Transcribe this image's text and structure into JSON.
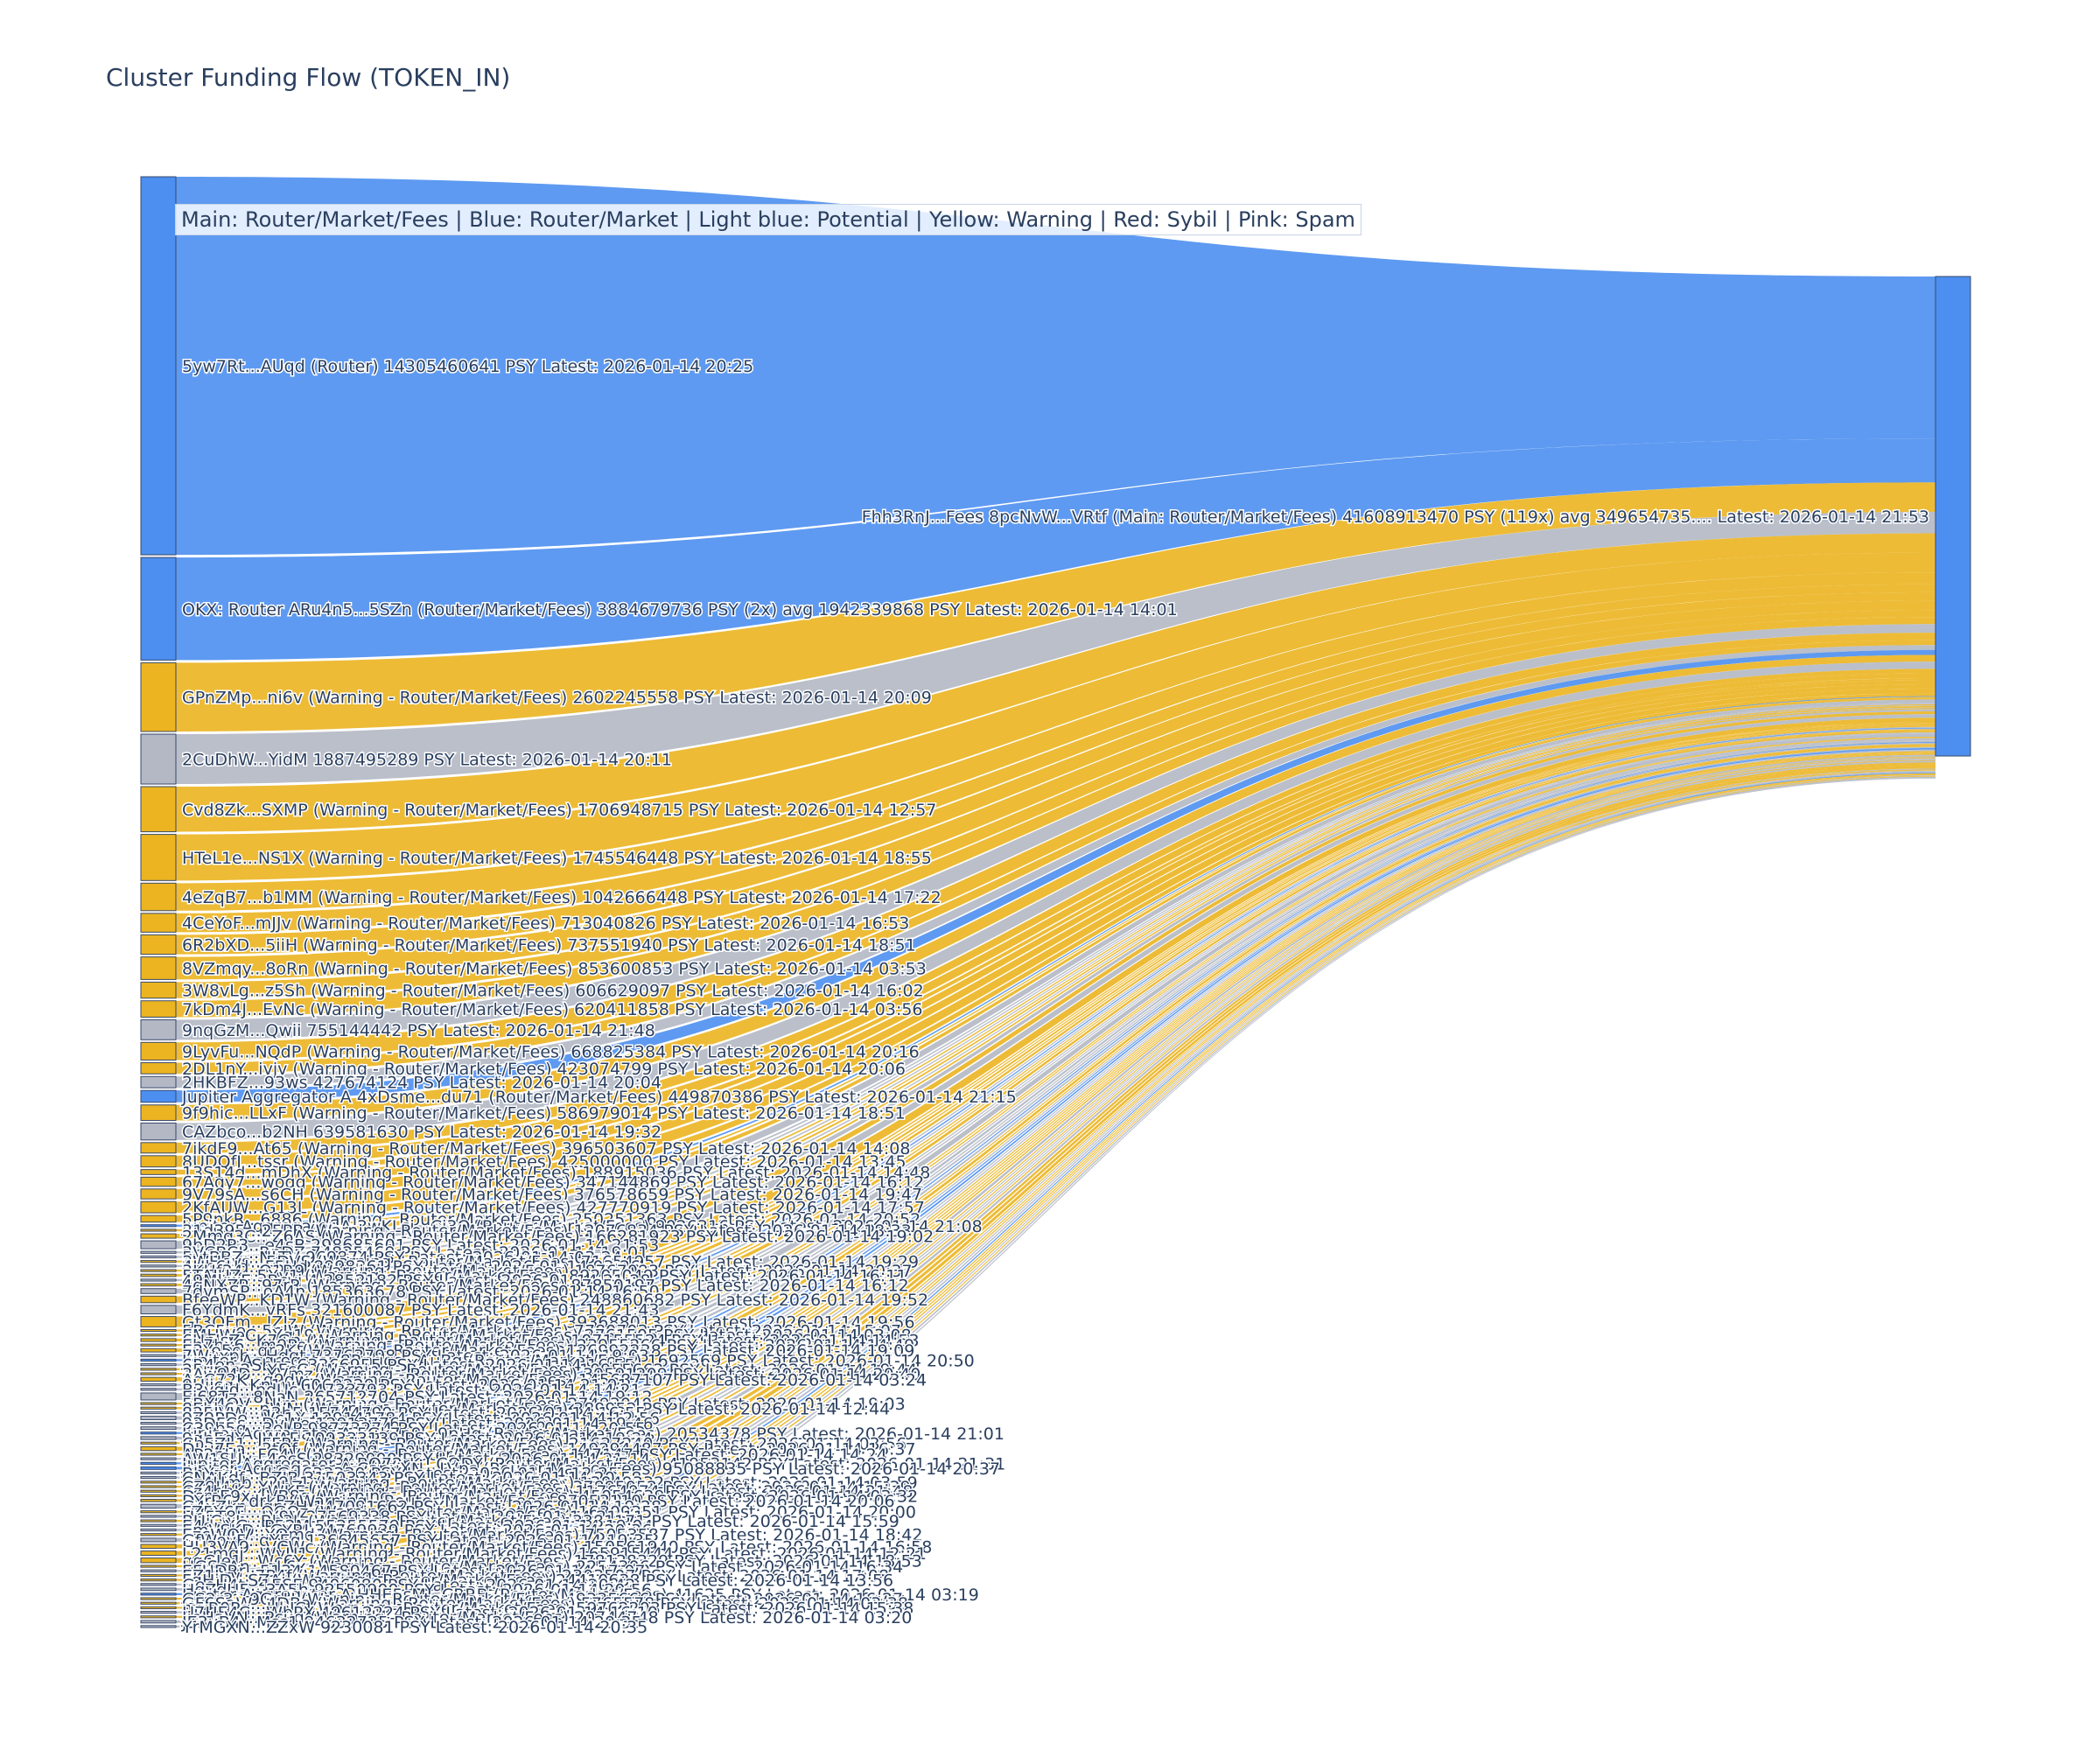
{
  "chart_data": {
    "type": "sankey",
    "title": "Cluster Funding Flow (TOKEN_IN)",
    "legend": "Main: Router/Market/Fees  |  Blue: Router/Market | Light blue: Potential | Yellow: Warning | Red: Sybil | Pink: Spam",
    "colors": {
      "router": "#4c8ff0",
      "warning": "#ebb420",
      "neutral": "#b3b8c4",
      "node_border": "#3a4a6a"
    },
    "target": {
      "label": "Fhh3RnJ...Fees 8pcNvW...VRtf (Main: Router/Market/Fees) 41608913470 PSY (119x) avg 349654735.... Latest: 2026-01-14 21:53",
      "value": 41608913470
    },
    "sources": [
      {
        "label": "5yw7Rt...AUqd (Router) 14305460641 PSY Latest: 2026-01-14 20:25",
        "value": 14305460641,
        "cat": "router"
      },
      {
        "label": "OKX: Router ARu4n5...5SZn (Router/Market/Fees) 3884679736 PSY (2x) avg 1942339868 PSY Latest: 2026-01-14 14:01",
        "value": 3884679736,
        "cat": "router"
      },
      {
        "label": "GPnZMp...ni6v (Warning - Router/Market/Fees) 2602245558 PSY Latest: 2026-01-14 20:09",
        "value": 2602245558,
        "cat": "warning"
      },
      {
        "label": "2CuDhW...YidM 1887495289 PSY Latest: 2026-01-14 20:11",
        "value": 1887495289,
        "cat": "neutral"
      },
      {
        "label": "Cvd8Zk...SXMP (Warning - Router/Market/Fees) 1706948715 PSY Latest: 2026-01-14 12:57",
        "value": 1706948715,
        "cat": "warning"
      },
      {
        "label": "HTeL1e...NS1X (Warning - Router/Market/Fees) 1745546448 PSY Latest: 2026-01-14 18:55",
        "value": 1745546448,
        "cat": "warning"
      },
      {
        "label": "4eZqB7...b1MM (Warning - Router/Market/Fees) 1042666448 PSY Latest: 2026-01-14 17:22",
        "value": 1042666448,
        "cat": "warning"
      },
      {
        "label": "4CeYoF...mJJv (Warning - Router/Market/Fees) 713040826 PSY Latest: 2026-01-14 16:53",
        "value": 713040826,
        "cat": "warning"
      },
      {
        "label": "6R2bXD...5iiH (Warning - Router/Market/Fees) 737551940 PSY Latest: 2026-01-14 18:51",
        "value": 737551940,
        "cat": "warning"
      },
      {
        "label": "8VZmqy...8oRn (Warning - Router/Market/Fees) 853600853 PSY Latest: 2026-01-14 03:53",
        "value": 853600853,
        "cat": "warning"
      },
      {
        "label": "3W8vLg...z5Sh (Warning - Router/Market/Fees) 606629097 PSY Latest: 2026-01-14 16:02",
        "value": 606629097,
        "cat": "warning"
      },
      {
        "label": "7kDm4J...EvNc (Warning - Router/Market/Fees) 620411858 PSY Latest: 2026-01-14 03:56",
        "value": 620411858,
        "cat": "warning"
      },
      {
        "label": "9nqGzM...Qwii 755144442 PSY Latest: 2026-01-14 21:48",
        "value": 755144442,
        "cat": "neutral"
      },
      {
        "label": "9LyvFu...NQdP (Warning - Router/Market/Fees) 668825384 PSY Latest: 2026-01-14 20:16",
        "value": 668825384,
        "cat": "warning"
      },
      {
        "label": "2DL1nY...ivjv (Warning - Router/Market/Fees) 423074799 PSY Latest: 2026-01-14 20:06",
        "value": 423074799,
        "cat": "warning"
      },
      {
        "label": "2HKBFZ...93ws 427674124 PSY Latest: 2026-01-14 20:04",
        "value": 427674124,
        "cat": "neutral"
      },
      {
        "label": "Jupiter Aggregator A 4xDsme...du71 (Router/Market/Fees) 449870386 PSY Latest: 2026-01-14 21:15",
        "value": 449870386,
        "cat": "router"
      },
      {
        "label": "9f9hic...LLxF (Warning - Router/Market/Fees) 586979014 PSY Latest: 2026-01-14 18:51",
        "value": 586979014,
        "cat": "warning"
      },
      {
        "label": "CAZbco...b2NH 639581630 PSY Latest: 2026-01-14 19:32",
        "value": 639581630,
        "cat": "neutral"
      },
      {
        "label": "7jkdF9...At65 (Warning - Router/Market/Fees) 396503607 PSY Latest: 2026-01-14 14:08",
        "value": 396503607,
        "cat": "warning"
      },
      {
        "label": "8UDQfJ...tssr (Warning - Router/Market/Fees) 425000000 PSY Latest: 2026-01-14 13:45",
        "value": 425000000,
        "cat": "warning"
      },
      {
        "label": "13S14d...mDhX (Warning - Router/Market/Fees) 188915036 PSY Latest: 2026-01-14 14:48",
        "value": 188915036,
        "cat": "warning"
      },
      {
        "label": "67Aqy7...woqg (Warning - Router/Market/Fees) 347144869 PSY Latest: 2026-01-14 16:12",
        "value": 347144869,
        "cat": "warning"
      },
      {
        "label": "9V79sA...s6CH (Warning - Router/Market/Fees) 376578659 PSY Latest: 2026-01-14 19:47",
        "value": 376578659,
        "cat": "warning"
      },
      {
        "label": "2KfAUW...G13L (Warning - Router/Market/Fees) 427770919 PSY Latest: 2026-01-14 17:57",
        "value": 427770919,
        "cat": "warning"
      },
      {
        "label": "5P9nkR...6886 (Warning - Router/Market/Fees) 250251363 PSY Latest: 2026-01-14 20:52",
        "value": 250251363,
        "cat": "warning"
      },
      {
        "label": "Jupiter Aggregator A 3wKLsi...Cj3Q (Router/Market/Fees) 9026316 PSY Latest: 2026-01-14 21:08",
        "value": 9026316,
        "cat": "router"
      },
      {
        "label": "31d395...25PB (Warning - Router/Market/Fees) 12076834 PSY Latest: 2026-01-14 18:33",
        "value": 12076834,
        "cat": "warning"
      },
      {
        "label": "2Mmg3C...Z6AS (Warning - Router/Market/Fees) 166281923 PSY Latest: 2026-01-14 19:02",
        "value": 166281923,
        "cat": "warning"
      },
      {
        "label": "9bD2R3...e4sB 298685601 PSY Latest: 2026-01-14 21:53",
        "value": 298685601,
        "cat": "neutral"
      },
      {
        "label": "3VCBCJ...RpDZ 74825469 PSY Latest: 2026-01-14 19:01",
        "value": 74825469,
        "cat": "neutral"
      },
      {
        "label": "5ytBBZ...NLTV 969874 PSY Latest: 2026-01-14 03:24",
        "value": 969874,
        "cat": "neutral"
      },
      {
        "label": "3WHeys...5DVS (Warning - Router/Market/Fees) 71654957 PSY Latest: 2026-01-14 19:29",
        "value": 71654957,
        "cat": "warning"
      },
      {
        "label": "4Hb6Ud...F5Hd 8998361 PSY Latest: 2026-01-14 03:26",
        "value": 8998361,
        "cat": "neutral"
      },
      {
        "label": "3KHf34...Q1R9 (Warning - Router/Market/Fees) 18767093 PSY Latest: 2026-01-14 20:37",
        "value": 18767093,
        "cat": "warning"
      },
      {
        "label": "5TAJUZ...5Xy1 (Warning - Router/Market/Fees) 89205049 PSY Latest: 2026-01-14 16:11",
        "value": 89205049,
        "cat": "warning"
      },
      {
        "label": "49MkwE...Bcvi 4 2852182 PSY Latest: 2026-01-14 21:28",
        "value": 2852182,
        "cat": "neutral"
      },
      {
        "label": "4qNXZP...97rR (Warning - Router/Market/Fees) 87850197 PSY Latest: 2026-01-14 16:12",
        "value": 87850197,
        "cat": "warning"
      },
      {
        "label": "7dvmSP...oA4n 185363678 PSY Latest: 2026-01-14 16:50",
        "value": 185363678,
        "cat": "neutral"
      },
      {
        "label": "BfeeWP...KD1W (Warning - Router/Market/Fees) 248860682 PSY Latest: 2026-01-14 19:52",
        "value": 248860682,
        "cat": "warning"
      },
      {
        "label": "F6YdmK...vRFs 321600087 PSY Latest: 2026-01-14 21:43",
        "value": 321600087,
        "cat": "neutral"
      },
      {
        "label": "Gt3QFm...JZJz (Warning - Router/Market/Fees) 393688013 PSY Latest: 2026-01-14 19:56",
        "value": 393688013,
        "cat": "warning"
      },
      {
        "label": "5BC5ye...5nJW (Warning - Router/Market/Fees) 7780703 PSY Latest: 2026-01-14 15:07",
        "value": 7780703,
        "cat": "warning"
      },
      {
        "label": "EMHWeC...Yq19 (Warning - Router/Market/Fees) 2761505 PSY Latest: 2026-01-14 03:08",
        "value": 2761505,
        "cat": "warning"
      },
      {
        "label": "6UpJsZ...K7Gn (Warning - Router/Market/Fees) 107155524 PSY Latest: 2026-01-14 14:53",
        "value": 107155524,
        "cat": "warning"
      },
      {
        "label": "Eh7hx6...m9Pe (Warning - Router/Market/Fees) 23955266 PSY Latest: 2026-01-14 14:49",
        "value": 23955266,
        "cat": "warning"
      },
      {
        "label": "E3Ye5o...qr2K (Warning - Router/Market/Fees) 126992238 PSY Latest: 2026-01-14 19:09",
        "value": 126992238,
        "cat": "warning"
      },
      {
        "label": "7Wuxpb...Hdqt 73763798 PSY Latest: 2026-01-14 19:03",
        "value": 73763798,
        "cat": "neutral"
      },
      {
        "label": "Jupiter Aggregator 8Rpqqs...AuBg (Router/Market/Fees) 1692569 PSY Latest: 2026-01-14 20:50",
        "value": 1692569,
        "cat": "router"
      },
      {
        "label": "6R4en...Sbhs 63366955 PSY Latest: 2026-01-14 16:55",
        "value": 63366955,
        "cat": "neutral"
      },
      {
        "label": "25ume2...XFcG (Warning - Router/Market/Fees) 10955662 PSY Latest: 2026-01-14 19:44",
        "value": 10955662,
        "cat": "warning"
      },
      {
        "label": "3Aw94D...YVmz (Warning - Router/Market/Fees) 39591209 PSY Latest: 2026-01-14 20:40",
        "value": 39591209,
        "cat": "warning"
      },
      {
        "label": "AqC72K...q9dw (Warning - Router/Market/Fees) 145687107 PSY Latest: 2026-01-14 03:24",
        "value": 145687107,
        "cat": "warning"
      },
      {
        "label": "9Ujjcq...Kn1w 6069229 PSY Latest: 2026-01-14 21:01",
        "value": 6069229,
        "cat": "neutral"
      },
      {
        "label": "B3ygjd...pdUc 14733793 PSY Latest: 2026-01-14 14:21",
        "value": 14733793,
        "cat": "neutral"
      },
      {
        "label": "Ej68Tz...8NaN 265712704 PSY Latest: 2026-01-14 19:12",
        "value": 265712704,
        "cat": "neutral"
      },
      {
        "label": "5BX4QV...HJm (Warning - Router/Market/Fees) 27493040 PSY Latest: 2026-01-14 19:03",
        "value": 27493040,
        "cat": "warning"
      },
      {
        "label": "8Ehb6s...nWNJ (Warning - Router/Market/Fees) 389952 PSY Latest: 2026-01-14 12:44",
        "value": 389952,
        "cat": "warning"
      },
      {
        "label": "825JVW...g3h5 15744799 PSY Latest: 2026-01-14 16:55",
        "value": 15744799,
        "cat": "neutral"
      },
      {
        "label": "9Z9PDe...Vc1X 129141784 PSY Latest: 2026-01-14 12:56",
        "value": 129141784,
        "cat": "neutral"
      },
      {
        "label": "93DFCs...DvWe 12913776 PSY Latest: 2026-01-14 19:46",
        "value": 12913776,
        "cat": "neutral"
      },
      {
        "label": "C39b5g...3eLP 98773274 PSY Latest: 2026-01-14 20:55",
        "value": 98773274,
        "cat": "neutral"
      },
      {
        "label": "Jupiter Aggregator A 5Gk7p9...9pHq (Router/Market/Fees) 20534378 PSY Latest: 2026-01-14 21:01",
        "value": 20534378,
        "cat": "router"
      },
      {
        "label": "9qbEdY...JWAF 109333139 PSY Latest: 2026-01-14 19:24",
        "value": 109333139,
        "cat": "neutral"
      },
      {
        "label": "Cb5ZL1...FFRt (Warning - Router/Market/Fees) 21627240 PSY Latest: 2026-01-14 03:56",
        "value": 21627240,
        "cat": "warning"
      },
      {
        "label": "DLu7Ea...3tQf (Warning - Router/Market/Fees) 149294487 PSY Latest: 2026-01-14 16:37",
        "value": 149294487,
        "cat": "warning"
      },
      {
        "label": "AP2nUJ...FC4V (Warning - Router/Market/Fees) 147147 PSY Latest: 2026-01-14 14:24",
        "value": 147147,
        "cat": "warning"
      },
      {
        "label": "AW1SUv...4ecS 28329000 PSY Latest: 2026-01-14 21:14",
        "value": 28329000,
        "cat": "neutral"
      },
      {
        "label": "Jupiter Aggregator A BQ72rK...CQDY (Router/Market/Fees) 41953142 PSY Latest: 2026-01-14 21:31",
        "value": 41953142,
        "cat": "router"
      },
      {
        "label": "Jupiter Aggregator A CapuXN...LVps (Router/Market/Fees) 95088835 PSY Latest: 2026-01-14 20:37",
        "value": 95088835,
        "cat": "router"
      },
      {
        "label": "BhYzqb...HiGr 633330 PSY Latest: 2026-01-14 12:25",
        "value": 633330,
        "cat": "neutral"
      },
      {
        "label": "CNAKdf...BZJB 31503343 PSY Latest: 2026-01-14 20:58",
        "value": 31503343,
        "cat": "neutral"
      },
      {
        "label": "Cz4Umb...29b1 (Warning - Router/Market/Fees) 13049332 PSY Latest: 2026-01-14 03:59",
        "value": 13049332,
        "cat": "warning"
      },
      {
        "label": "CZ9J4q...XUhZ (Warning - Router/Market/Fees) 37895052 PSY Latest: 2026-01-14 15:39",
        "value": 37895052,
        "cat": "warning"
      },
      {
        "label": "Cz4bhK...rWKE (Warning - Router/Market/Fees) 11764974 PSY Latest: 2026-01-14 21:48",
        "value": 11764974,
        "cat": "warning"
      },
      {
        "label": "DsmE9x...VB8q (Warning - Router/Market/Fees) 45054639 PSY Latest: 2026-01-14 03:32",
        "value": 45054639,
        "cat": "warning"
      },
      {
        "label": "DYrB6...drkB (Warning - Router/Market/Fees) 87053110 PSY Latest: 2026-01-14 20:06",
        "value": 87053110,
        "cat": "warning"
      },
      {
        "label": "G4xZkn...gpZH 147091662 PSY Latest: 2026-01-14 19:28",
        "value": 147091662,
        "cat": "neutral"
      },
      {
        "label": "FZ5Y6E...QGQz (Warning - Router/Market/Fees) 16309351 PSY Latest: 2026-01-14 20:00",
        "value": 16309351,
        "cat": "warning"
      },
      {
        "label": "Hn5T8L...LY9V 27569338 PSY Latest: 2026-01-14 21:11",
        "value": 27569338,
        "cat": "neutral"
      },
      {
        "label": "BUiCwL...Bb3L (Warning - Router/Market/Fees) 3381171 PSY Latest: 2026-01-14 15:59",
        "value": 3381171,
        "cat": "warning"
      },
      {
        "label": "E4dnXG...P52M 55255579 PSY Latest: 2026-01-14 19:04",
        "value": 55255579,
        "cat": "neutral"
      },
      {
        "label": "EmVSKD...GYRI 34769939 PSY Latest: 2026-01-14 20:36",
        "value": 34769939,
        "cat": "neutral"
      },
      {
        "label": "EzcWQV...YQmd (Warning - Router/Market/Fees) 75053587 PSY Latest: 2026-01-14 18:42",
        "value": 75053587,
        "cat": "warning"
      },
      {
        "label": "GfWoyF...gYEq 136645657 PSY Latest: 2026-01-14 19:35",
        "value": 136645657,
        "cat": "neutral"
      },
      {
        "label": "HU3VA9...VCWc (Warning - Router/Market/Fees) 150561940 PSY Latest: 2026-01-14 16:58",
        "value": 150561940,
        "cat": "warning"
      },
      {
        "label": "L21mgj...WyU1 (Warning - Router/Market/Fees) 165915444 PSY Latest: 2026-01-14 12:21",
        "value": 165915444,
        "cat": "warning"
      },
      {
        "label": "ggGJe1...Wc6Y (Warning - Router/Market/Fees) 178138329 PSY Latest: 2026-01-14 18:53",
        "value": 178138329,
        "cat": "warning"
      },
      {
        "label": "HGSaAn...qL6x (Warning - Router/Market/Fees) 2254306 PSY Latest: 2026-01-14 16:34",
        "value": 2254306,
        "cat": "warning"
      },
      {
        "label": "EFUDRr...5134 14580467 PSY Latest: 2026-01-14 17:07",
        "value": 14580467,
        "cat": "neutral"
      },
      {
        "label": "EZ1Lrv...7P4f (Warning - Router/Market/Fees) 2303507 PSY Latest: 2026-01-14 17:08",
        "value": 2303507,
        "cat": "warning"
      },
      {
        "label": "FqHiD...SZAi (Warning - Router/Market/Fees) 24410638 PSY Latest: 2026-01-14 13:56",
        "value": 24410638,
        "cat": "warning"
      },
      {
        "label": "GeeH4t...1ESE 9406080 PSY Latest: 2026-01-14 20:42",
        "value": 9406080,
        "cat": "neutral"
      },
      {
        "label": "HqZdU5...3A5h 92550900 PSY Latest: 2026-01-14 20:56",
        "value": 92550900,
        "cat": "neutral"
      },
      {
        "label": "Jupiter Aggregator A HHE5sM...CRRB (Router/Market/Fees) 41625 PSY Latest: 2026-01-14 03:19",
        "value": 41625,
        "cat": "router"
      },
      {
        "label": "GS2r3...9GnU (Warning - Router/Market/Fees) 49335666 PSY Latest: 2026-01-14 16:27",
        "value": 49335666,
        "cat": "warning"
      },
      {
        "label": "GF6SaW...4DBa (Warning - Router/Market/Fees) 5765578 PSY Latest: 2026-01-14 03:38",
        "value": 5765578,
        "cat": "warning"
      },
      {
        "label": "myR0Pq...HbJC (Warning - Router/Market/Fees) 59762203 PSY Latest: 2026-01-14 15:38",
        "value": 59762203,
        "cat": "warning"
      },
      {
        "label": "H7HE4C...WbPX 49612224 PSY Latest: 2026-01-14 16:10",
        "value": 49612224,
        "cat": "neutral"
      },
      {
        "label": "JjeHaVN...Pcug (Warning - Router/Market/Fees) 20744748 PSY Latest: 2026-01-14 03:20",
        "value": 20744748,
        "cat": "warning"
      },
      {
        "label": "JE3uB4...Mss1 94632725 PSY Latest: 2026-01-14 20:35",
        "value": 94632725,
        "cat": "neutral"
      },
      {
        "label": "YrMGXN...ZZxW 9230081 PSY Latest: 2026-01-14 20:35",
        "value": 9230081,
        "cat": "neutral"
      }
    ]
  }
}
